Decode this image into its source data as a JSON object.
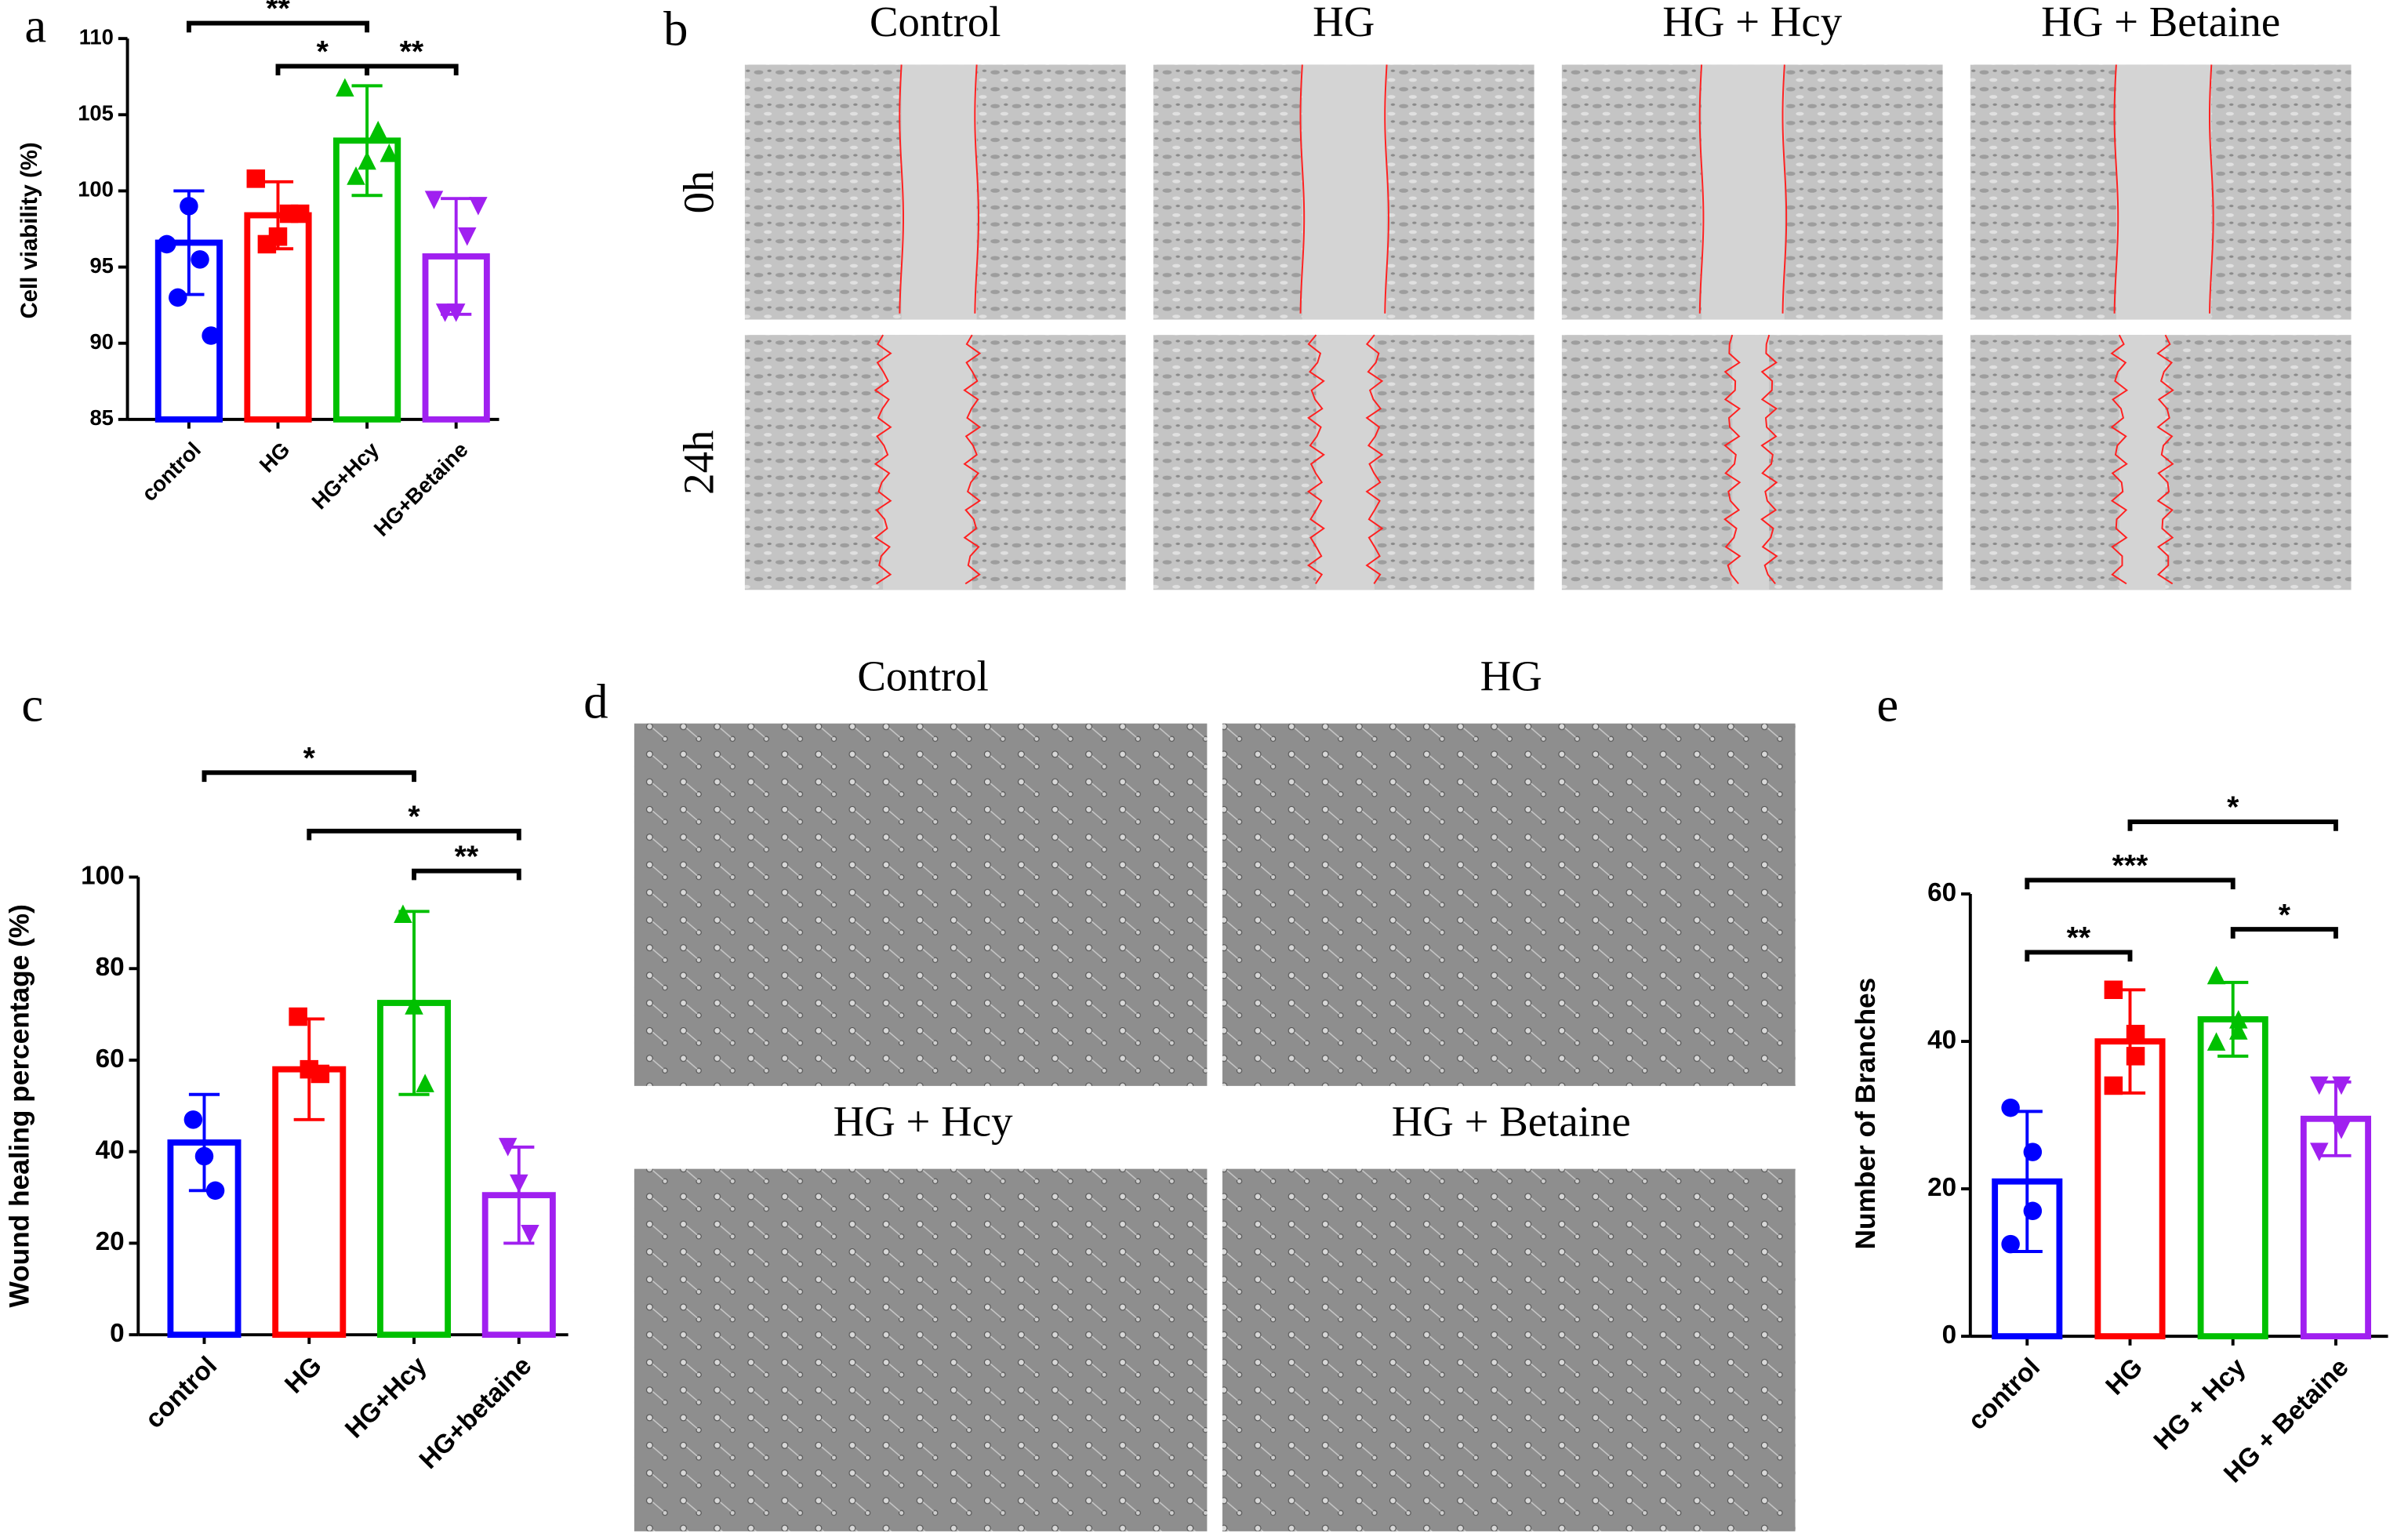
{
  "chart_data": [
    {
      "type": "bar",
      "panel_label": "a",
      "ylabel": "Cell viability (%)",
      "categories": [
        "control",
        "HG",
        "HG+Hcy",
        "HG+Betaine"
      ],
      "values": [
        96.6,
        98.4,
        103.3,
        95.7
      ],
      "errors": [
        3.4,
        2.2,
        3.6,
        3.8
      ],
      "points": [
        [
          96.5,
          95.5,
          99,
          93,
          90.5
        ],
        [
          100.8,
          98.5,
          97,
          96.5,
          98.5
        ],
        [
          106.8,
          104,
          102,
          101,
          102.5
        ],
        [
          99.4,
          97,
          92,
          92,
          99
        ]
      ],
      "colors": [
        "#0000ff",
        "#ff0000",
        "#00c000",
        "#a020f0"
      ],
      "ylim": [
        85,
        110
      ],
      "yticks": [
        85,
        90,
        95,
        100,
        105,
        110
      ],
      "annotations": [
        {
          "text": "**",
          "from": 0,
          "to": 2
        },
        {
          "text": "*",
          "from": 1,
          "to": 2
        },
        {
          "text": "**",
          "from": 2,
          "to": 3
        }
      ]
    },
    {
      "type": "bar",
      "panel_label": "c",
      "ylabel": "Wound healing percentage (%)",
      "categories": [
        "control",
        "HG",
        "HG+Hcy",
        "HG+betaine"
      ],
      "values": [
        42,
        58,
        72.5,
        30.5
      ],
      "errors": [
        10.5,
        11,
        20,
        10.5
      ],
      "points": [
        [
          47,
          39,
          31.5
        ],
        [
          69.5,
          58,
          57
        ],
        [
          92,
          72,
          55
        ],
        [
          41,
          33,
          22
        ]
      ],
      "colors": [
        "#0000ff",
        "#ff0000",
        "#00c000",
        "#a020f0"
      ],
      "ylim": [
        0,
        100
      ],
      "yticks": [
        0,
        20,
        40,
        60,
        80,
        100
      ],
      "annotations": [
        {
          "text": "*",
          "from": 0,
          "to": 2
        },
        {
          "text": "*",
          "from": 1,
          "to": 3
        },
        {
          "text": "**",
          "from": 2,
          "to": 3
        }
      ]
    },
    {
      "type": "bar",
      "panel_label": "e",
      "ylabel": "Number of Branches",
      "categories": [
        "control",
        "HG",
        "HG + Hcy",
        "HG + Betaine"
      ],
      "values": [
        21,
        40,
        43,
        29.5
      ],
      "errors": [
        9.5,
        7,
        5,
        5
      ],
      "points": [
        [
          31,
          25,
          17,
          12.5
        ],
        [
          47,
          41,
          38,
          34
        ],
        [
          49,
          43,
          41.5,
          40
        ],
        [
          34,
          34,
          28,
          25
        ]
      ],
      "colors": [
        "#0000ff",
        "#ff0000",
        "#00c000",
        "#a020f0"
      ],
      "ylim": [
        0,
        60
      ],
      "yticks": [
        0,
        20,
        40,
        60
      ],
      "annotations": [
        {
          "text": "*",
          "from": 1,
          "to": 3
        },
        {
          "text": "***",
          "from": 0,
          "to": 2
        },
        {
          "text": "*",
          "from": 2,
          "to": 3
        },
        {
          "text": "**",
          "from": 0,
          "to": 1
        }
      ]
    }
  ],
  "panel_b": {
    "label": "b",
    "columns": [
      "Control",
      "HG",
      "HG + Hcy",
      "HG + Betaine"
    ],
    "rows": [
      "0h",
      "24h"
    ]
  },
  "panel_d": {
    "label": "d",
    "labels": [
      "Control",
      "HG",
      "HG + Hcy",
      "HG + Betaine"
    ]
  }
}
